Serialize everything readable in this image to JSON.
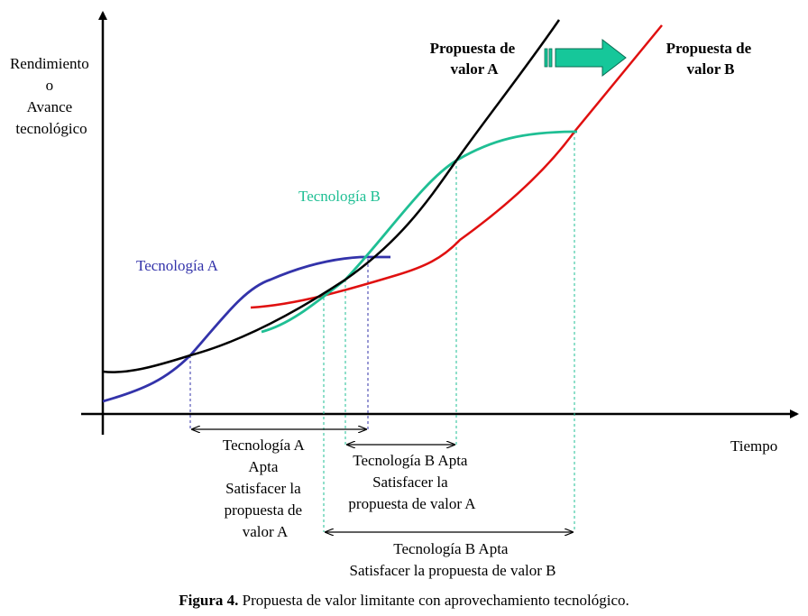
{
  "axes": {
    "y_label_lines": [
      "Rendimiento",
      "o",
      "Avance",
      "tecnológico"
    ],
    "x_label": "Tiempo"
  },
  "curves": {
    "tech_a": {
      "label": "Tecnología A",
      "color": "#3333aa"
    },
    "tech_b": {
      "label": "Tecnología B",
      "color": "#1fbf94"
    },
    "value_a": {
      "label_lines": [
        "Propuesta de",
        "valor A"
      ],
      "color": "#000000"
    },
    "value_b": {
      "label_lines": [
        "Propuesta de",
        "valor B"
      ],
      "color": "#e01010"
    }
  },
  "transition_arrow": {
    "icon": "right-arrow-icon",
    "color": "#16c79a"
  },
  "intervals": {
    "tech_a_apt_value_a": {
      "label_lines": [
        "Tecnología A",
        "Apta",
        "Satisfacer la",
        "propuesta de",
        "valor A"
      ]
    },
    "tech_b_apt_value_a": {
      "label_lines": [
        "Tecnología B Apta",
        "Satisfacer la",
        "propuesta de valor A"
      ]
    },
    "tech_b_apt_value_b": {
      "label_lines": [
        "Tecnología B  Apta",
        "Satisfacer la propuesta de valor B"
      ]
    }
  },
  "caption": {
    "prefix": "Figura 4.",
    "text": " Propuesta de valor limitante con aprovechamiento tecnológico."
  }
}
